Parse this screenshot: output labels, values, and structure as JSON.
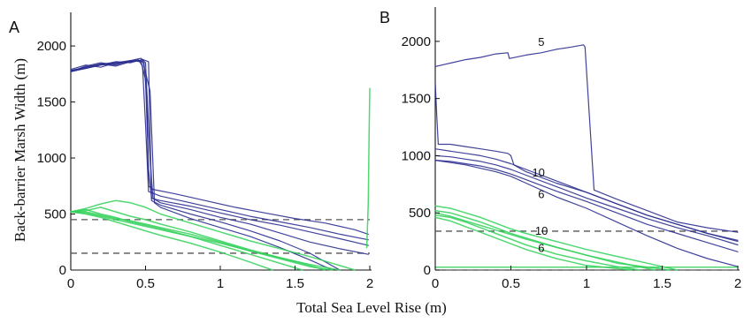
{
  "chart_data": [
    {
      "panel": "A",
      "type": "line",
      "xlabel": "Total Sea Level Rise (m)",
      "ylabel": "Back-barrier Marsh Width (m)",
      "xlim": [
        0,
        2
      ],
      "ylim": [
        0,
        2300
      ],
      "xticks": [
        "0",
        "0.5",
        "1",
        "1.5",
        "2"
      ],
      "yticks": [
        "0",
        "500",
        "1000",
        "1500",
        "2000"
      ],
      "hlines": [
        450,
        150
      ],
      "colors": {
        "blue": "#2b2f8f",
        "green": "#33d15a"
      },
      "series": [
        {
          "color": "blue",
          "x": [
            0,
            0.1,
            0.2,
            0.3,
            0.4,
            0.46,
            0.49,
            0.51,
            0.52,
            0.55,
            0.7,
            0.9,
            1.1,
            1.3,
            1.5,
            1.7,
            1.9,
            1.99
          ],
          "y": [
            1770,
            1800,
            1830,
            1840,
            1860,
            1870,
            1850,
            1500,
            750,
            720,
            680,
            620,
            560,
            510,
            460,
            420,
            360,
            320
          ]
        },
        {
          "color": "blue",
          "x": [
            0,
            0.1,
            0.2,
            0.3,
            0.4,
            0.45,
            0.48,
            0.5,
            0.52,
            0.6,
            0.8,
            1.0,
            1.2,
            1.4,
            1.6,
            1.8,
            1.99
          ],
          "y": [
            1780,
            1810,
            1840,
            1820,
            1860,
            1880,
            1820,
            1300,
            700,
            660,
            600,
            540,
            480,
            430,
            380,
            320,
            270
          ]
        },
        {
          "color": "blue",
          "x": [
            0,
            0.1,
            0.2,
            0.3,
            0.4,
            0.47,
            0.5,
            0.52,
            0.54,
            0.6,
            0.8,
            1.0,
            1.2,
            1.4,
            1.6,
            1.8,
            1.99
          ],
          "y": [
            1790,
            1830,
            1810,
            1850,
            1870,
            1860,
            1700,
            900,
            640,
            620,
            570,
            510,
            450,
            400,
            340,
            280,
            220
          ]
        },
        {
          "color": "blue",
          "x": [
            0,
            0.1,
            0.2,
            0.3,
            0.4,
            0.47,
            0.5,
            0.53,
            0.55,
            0.6,
            0.8,
            1.0,
            1.2,
            1.4,
            1.6,
            1.8,
            1.99
          ],
          "y": [
            1770,
            1820,
            1850,
            1830,
            1870,
            1890,
            1850,
            1000,
            640,
            600,
            540,
            470,
            410,
            330,
            250,
            190,
            140
          ]
        },
        {
          "color": "blue",
          "x": [
            0,
            0.1,
            0.2,
            0.3,
            0.4,
            0.48,
            0.52,
            0.54,
            0.6,
            0.8,
            1.0,
            1.2,
            1.4,
            1.6,
            1.8
          ],
          "y": [
            1780,
            1800,
            1830,
            1860,
            1850,
            1880,
            1860,
            620,
            580,
            500,
            430,
            350,
            260,
            150,
            0
          ]
        },
        {
          "color": "blue",
          "x": [
            0,
            0.1,
            0.2,
            0.3,
            0.4,
            0.48,
            0.53,
            0.56,
            0.6,
            0.8,
            1.0,
            1.2,
            1.4,
            1.6,
            1.75
          ],
          "y": [
            1780,
            1810,
            1840,
            1850,
            1860,
            1870,
            1600,
            600,
            560,
            460,
            380,
            300,
            200,
            90,
            0
          ]
        },
        {
          "color": "green",
          "x": [
            0,
            0.1,
            0.2,
            0.3,
            0.4,
            0.5,
            0.6,
            0.8,
            1.0,
            1.2,
            1.4,
            1.55
          ],
          "y": [
            520,
            540,
            500,
            470,
            430,
            400,
            370,
            300,
            220,
            140,
            60,
            0
          ]
        },
        {
          "color": "green",
          "x": [
            0,
            0.1,
            0.2,
            0.3,
            0.4,
            0.5,
            0.6,
            0.8,
            1.0,
            1.2,
            1.4,
            1.6,
            1.7
          ],
          "y": [
            520,
            530,
            560,
            520,
            480,
            450,
            410,
            340,
            260,
            180,
            110,
            40,
            0
          ]
        },
        {
          "color": "green",
          "x": [
            0,
            0.1,
            0.2,
            0.3,
            0.4,
            0.5,
            0.6,
            0.8,
            1.0,
            1.2,
            1.4,
            1.6,
            1.8
          ],
          "y": [
            520,
            510,
            480,
            450,
            420,
            390,
            360,
            300,
            240,
            170,
            110,
            50,
            0
          ]
        },
        {
          "color": "green",
          "x": [
            0,
            0.1,
            0.2,
            0.3,
            0.4,
            0.5,
            0.6,
            0.8,
            1.0,
            1.2,
            1.4,
            1.6,
            1.8,
            1.9
          ],
          "y": [
            520,
            550,
            590,
            620,
            600,
            560,
            500,
            420,
            340,
            260,
            190,
            120,
            40,
            0
          ]
        },
        {
          "color": "green",
          "x": [
            0,
            0.1,
            0.2,
            0.3,
            0.4,
            0.5,
            0.6,
            0.8,
            1.0,
            1.2,
            1.35
          ],
          "y": [
            520,
            500,
            470,
            430,
            390,
            350,
            310,
            240,
            160,
            70,
            0
          ]
        },
        {
          "color": "green",
          "x": [
            0,
            0.1,
            0.2,
            0.3,
            0.4,
            0.5,
            0.6,
            0.8,
            1.0,
            1.2,
            1.4,
            1.6,
            1.75
          ],
          "y": [
            520,
            520,
            490,
            460,
            440,
            410,
            380,
            320,
            250,
            170,
            100,
            30,
            0
          ]
        },
        {
          "color": "green",
          "x": [
            1.98,
            1.99,
            1.995,
            2.0
          ],
          "y": [
            200,
            600,
            1200,
            1620
          ]
        }
      ]
    },
    {
      "panel": "B",
      "type": "line",
      "xlabel": "Total Sea Level Rise (m)",
      "ylabel": "Back-barrier Marsh Width (m)",
      "xlim": [
        0,
        2
      ],
      "ylim": [
        0,
        2300
      ],
      "xticks": [
        "0",
        "0.5",
        "1",
        "1.5",
        "2"
      ],
      "yticks": [
        "0",
        "500",
        "1000",
        "1500",
        "2000"
      ],
      "hlines": [
        340,
        0
      ],
      "colors": {
        "blue": "#2b2f8f",
        "green": "#33d15a"
      },
      "annotations": [
        {
          "text": "5",
          "x": 0.68,
          "y": 1960
        },
        {
          "text": "10",
          "x": 0.64,
          "y": 820
        },
        {
          "text": "6",
          "x": 0.68,
          "y": 630
        },
        {
          "text": "10",
          "x": 0.66,
          "y": 310
        },
        {
          "text": "6",
          "x": 0.68,
          "y": 160
        }
      ],
      "series": [
        {
          "color": "blue",
          "x": [
            0,
            0.1,
            0.2,
            0.3,
            0.4,
            0.48,
            0.49,
            0.6,
            0.7,
            0.8,
            0.9,
            0.98,
            0.99,
            1.05,
            1.2,
            1.4,
            1.6,
            1.8,
            2.0
          ],
          "y": [
            1780,
            1810,
            1840,
            1860,
            1890,
            1900,
            1850,
            1880,
            1900,
            1930,
            1950,
            1970,
            1950,
            700,
            620,
            520,
            420,
            370,
            330
          ]
        },
        {
          "color": "blue",
          "x": [
            0,
            0.01,
            0.02,
            0.1,
            0.2,
            0.3,
            0.4,
            0.48,
            0.5,
            0.52,
            0.6,
            0.8,
            1.0,
            1.2,
            1.4,
            1.6,
            1.8,
            2.0
          ],
          "y": [
            1640,
            1350,
            1100,
            1100,
            1080,
            1060,
            1040,
            1020,
            1000,
            920,
            860,
            760,
            680,
            580,
            480,
            400,
            320,
            260
          ]
        },
        {
          "color": "blue",
          "x": [
            0,
            0.1,
            0.2,
            0.3,
            0.4,
            0.5,
            0.6,
            0.8,
            1.0,
            1.2,
            1.4,
            1.6,
            1.8,
            2.0
          ],
          "y": [
            1060,
            1040,
            1020,
            1000,
            970,
            930,
            880,
            780,
            680,
            580,
            480,
            400,
            320,
            250
          ]
        },
        {
          "color": "blue",
          "x": [
            0,
            0.1,
            0.2,
            0.3,
            0.4,
            0.5,
            0.6,
            0.8,
            1.0,
            1.2,
            1.4,
            1.6,
            1.8,
            2.0
          ],
          "y": [
            1000,
            990,
            970,
            950,
            920,
            880,
            830,
            730,
            630,
            540,
            450,
            370,
            300,
            220
          ]
        },
        {
          "color": "blue",
          "x": [
            0,
            0.1,
            0.2,
            0.3,
            0.4,
            0.5,
            0.6,
            0.8,
            1.0,
            1.2,
            1.4,
            1.6,
            1.8,
            2.0
          ],
          "y": [
            960,
            950,
            930,
            910,
            880,
            840,
            790,
            690,
            600,
            500,
            400,
            320,
            240,
            160
          ]
        },
        {
          "color": "blue",
          "x": [
            0,
            0.1,
            0.2,
            0.3,
            0.4,
            0.5,
            0.6,
            0.8,
            1.0,
            1.2,
            1.4,
            1.6,
            1.8,
            2.0
          ],
          "y": [
            960,
            940,
            920,
            890,
            860,
            820,
            760,
            640,
            540,
            420,
            300,
            190,
            100,
            30
          ]
        },
        {
          "color": "green",
          "x": [
            0,
            0.1,
            0.2,
            0.3,
            0.4,
            0.5,
            0.6,
            0.8,
            1.0,
            1.2,
            1.4,
            1.6
          ],
          "y": [
            560,
            540,
            500,
            460,
            410,
            360,
            320,
            250,
            180,
            120,
            60,
            0
          ]
        },
        {
          "color": "green",
          "x": [
            0,
            0.1,
            0.2,
            0.3,
            0.4,
            0.5,
            0.6,
            0.8,
            1.0,
            1.2,
            1.45
          ],
          "y": [
            520,
            500,
            460,
            420,
            370,
            320,
            280,
            200,
            130,
            70,
            0
          ]
        },
        {
          "color": "green",
          "x": [
            0,
            0.1,
            0.2,
            0.3,
            0.4,
            0.5,
            0.6,
            0.8,
            1.0,
            1.2,
            1.35
          ],
          "y": [
            480,
            460,
            420,
            370,
            320,
            270,
            220,
            140,
            80,
            30,
            0
          ]
        },
        {
          "color": "green",
          "x": [
            0,
            0.1,
            0.2,
            0.3,
            0.4,
            0.5,
            0.6,
            0.8,
            1.0,
            1.2,
            1.55
          ],
          "y": [
            500,
            470,
            430,
            390,
            350,
            310,
            270,
            200,
            130,
            60,
            0
          ]
        },
        {
          "color": "green",
          "x": [
            0,
            0.1,
            0.2,
            0.3,
            0.4,
            0.5,
            0.6,
            0.8,
            1.0,
            1.3
          ],
          "y": [
            460,
            430,
            380,
            330,
            280,
            230,
            180,
            100,
            40,
            0
          ]
        },
        {
          "color": "green",
          "x": [
            0,
            0.5,
            1.0,
            1.5,
            2.0
          ],
          "y": [
            25,
            25,
            25,
            25,
            25
          ]
        }
      ]
    }
  ],
  "panels": [
    {
      "letter": "A",
      "ylabel": "Back-barrier Marsh Width (m)"
    },
    {
      "letter": "B"
    }
  ],
  "shared_xlabel": "Total Sea Level Rise (m)"
}
